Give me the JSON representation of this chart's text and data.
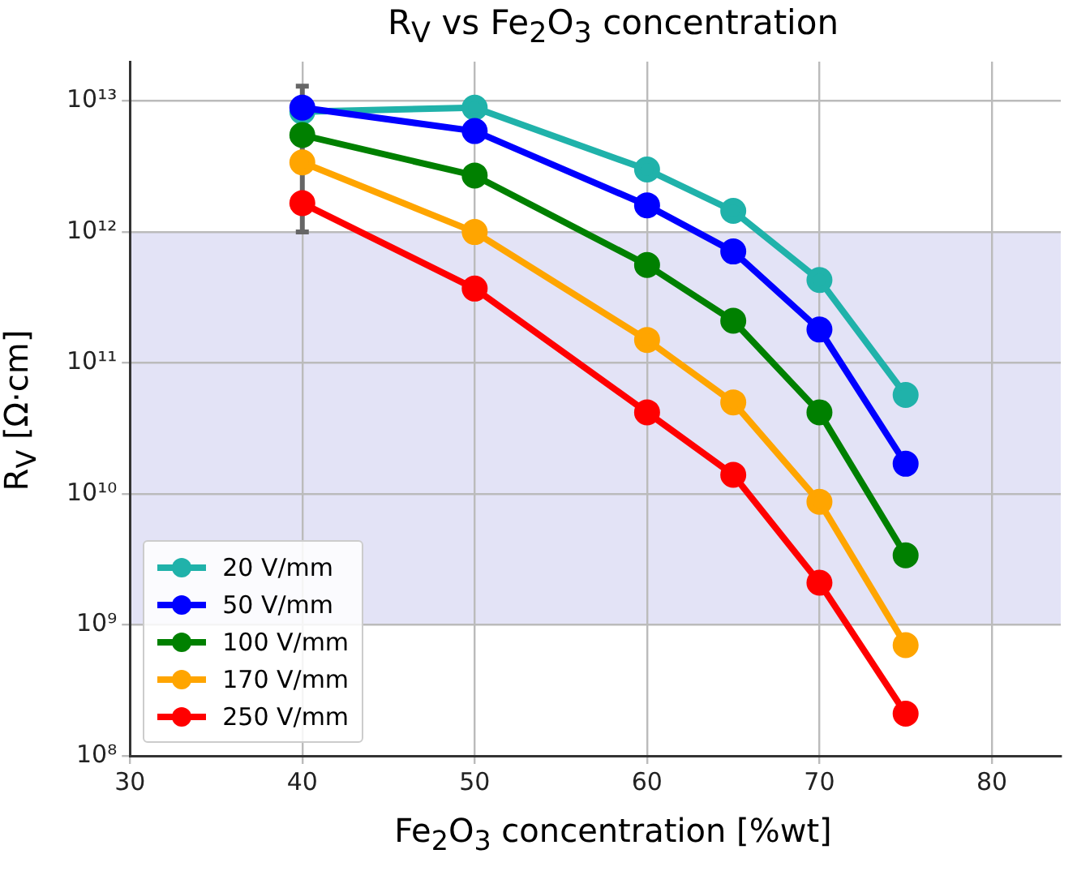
{
  "chart_data": {
    "type": "line",
    "title": "R$_{V}$ vs Fe$_{2}$O$_{3}$ concentration",
    "xlabel": "Fe$_{2}$O$_{3}$ concentration [%wt]",
    "ylabel": "R$_{V}$ [Ω·cm]",
    "x": [
      40,
      50,
      60,
      65,
      70,
      75
    ],
    "series": [
      {
        "name": "20 V/mm",
        "color": "#20b2aa",
        "values": [
          8300000000000.0,
          8900000000000.0,
          3000000000000.0,
          1450000000000.0,
          430000000000.0,
          57000000000.0
        ],
        "errors": [
          [
            1000000000000.0,
            13000000000000.0
          ],
          null,
          null,
          null,
          null,
          null
        ]
      },
      {
        "name": "50 V/mm",
        "color": "#0000ff",
        "values": [
          8900000000000.0,
          5900000000000.0,
          1600000000000.0,
          710000000000.0,
          180000000000.0,
          17000000000.0
        ]
      },
      {
        "name": "100 V/mm",
        "color": "#008000",
        "values": [
          5500000000000.0,
          2700000000000.0,
          560000000000.0,
          210000000000.0,
          42000000000.0,
          3400000000.0
        ]
      },
      {
        "name": "170 V/mm",
        "color": "#ffa500",
        "values": [
          3400000000000.0,
          1000000000000.0,
          150000000000.0,
          50000000000.0,
          8700000000.0,
          700000000.0
        ]
      },
      {
        "name": "250 V/mm",
        "color": "#ff0000",
        "values": [
          1660000000000.0,
          370000000000.0,
          42000000000.0,
          14000000000.0,
          2100000000.0,
          210000000.0
        ]
      }
    ],
    "xlim": [
      30,
      84
    ],
    "xticks": [
      30,
      40,
      50,
      60,
      70,
      80
    ],
    "ylim": [
      100000000.0,
      20000000000000.0
    ],
    "log": true,
    "yticks": [
      {
        "value": 100000000.0,
        "label": "10⁸"
      },
      {
        "value": 1000000000.0,
        "label": "10⁹"
      },
      {
        "value": 10000000000.0,
        "label": "10¹⁰"
      },
      {
        "value": 100000000000.0,
        "label": "10¹¹"
      },
      {
        "value": 1000000000000.0,
        "label": "10¹²"
      },
      {
        "value": 10000000000000.0,
        "label": "10¹³"
      }
    ],
    "bands": [
      {
        "axis": "y",
        "from": 1000000000.0,
        "to": 1000000000000.0,
        "color": "#e3e3f6"
      }
    ],
    "grid": true,
    "legend": "bottom left",
    "marker": "circle",
    "line_style": "solid"
  }
}
